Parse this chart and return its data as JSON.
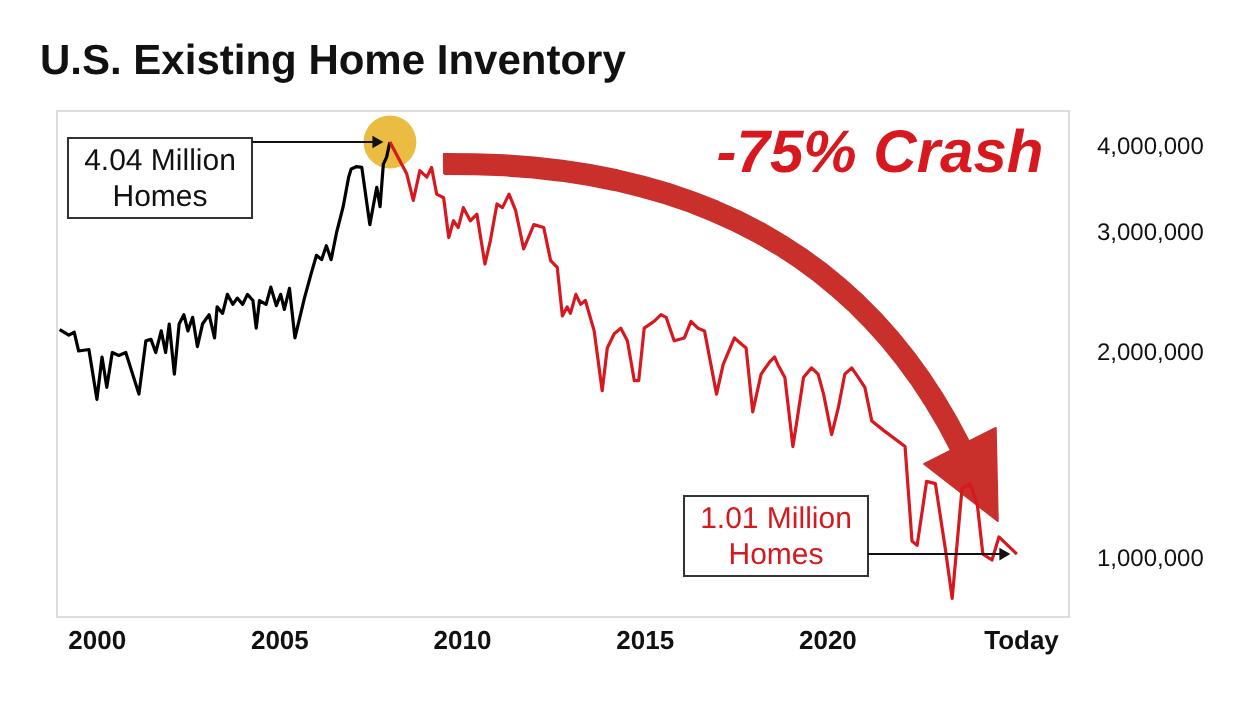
{
  "chart_data": {
    "type": "line",
    "title": "U.S. Existing Home Inventory",
    "x": [
      1999.0,
      1999.25,
      1999.4,
      1999.52,
      1999.8,
      2000.02,
      2000.16,
      2000.29,
      2000.44,
      2000.62,
      2000.81,
      2001.17,
      2001.36,
      2001.5,
      2001.63,
      2001.78,
      2001.9,
      2002.0,
      2002.14,
      2002.27,
      2002.4,
      2002.51,
      2002.64,
      2002.77,
      2002.91,
      2003.09,
      2003.24,
      2003.31,
      2003.46,
      2003.59,
      2003.74,
      2003.86,
      2004.01,
      2004.14,
      2004.29,
      2004.38,
      2004.47,
      2004.65,
      2004.78,
      2004.93,
      2005.05,
      2005.15,
      2005.29,
      2005.44,
      2005.7,
      2005.88,
      2006.03,
      2006.17,
      2006.3,
      2006.43,
      2006.58,
      2006.76,
      2006.91,
      2006.98,
      2007.13,
      2007.27,
      2007.4,
      2007.49,
      2007.58,
      2007.68,
      2007.77,
      2007.86,
      2007.95,
      2008.04
    ],
    "series": [
      {
        "color": "#000000",
        "values": [
          2150000,
          2110000,
          2130000,
          2000000,
          2010000,
          1700000,
          1960000,
          1770000,
          1990000,
          1970000,
          1990000,
          1730000,
          2070000,
          2080000,
          1990000,
          2140000,
          1990000,
          2190000,
          1850000,
          2190000,
          2260000,
          2140000,
          2240000,
          2030000,
          2190000,
          2260000,
          2090000,
          2320000,
          2270000,
          2420000,
          2340000,
          2390000,
          2340000,
          2420000,
          2370000,
          2160000,
          2370000,
          2340000,
          2480000,
          2330000,
          2420000,
          2300000,
          2470000,
          2090000,
          2390000,
          2590000,
          2760000,
          2720000,
          2850000,
          2720000,
          2980000,
          3250000,
          3590000,
          3690000,
          3720000,
          3710000,
          3310000,
          3060000,
          3250000,
          3470000,
          3250000,
          3750000,
          3840000,
          4040000
        ]
      },
      {
        "color": "#d7191f",
        "x": [
          2008.04,
          2008.5,
          2008.68,
          2008.86,
          2009.05,
          2009.18,
          2009.32,
          2009.51,
          2009.65,
          2009.78,
          2009.91,
          2010.05,
          2010.24,
          2010.42,
          2010.64,
          2010.79,
          2010.97,
          2011.12,
          2011.3,
          2011.48,
          2011.7,
          2011.98,
          2012.25,
          2012.44,
          2012.62,
          2012.76,
          2012.89,
          2012.98,
          2013.13,
          2013.26,
          2013.39,
          2013.63,
          2013.85,
          2013.99,
          2014.18,
          2014.36,
          2014.54,
          2014.73,
          2014.85,
          2015.0,
          2015.27,
          2015.46,
          2015.6,
          2015.82,
          2016.1,
          2016.28,
          2016.47,
          2016.65,
          2016.98,
          2017.16,
          2017.35,
          2017.47,
          2017.65,
          2017.79,
          2017.97,
          2018.2,
          2018.44,
          2018.57,
          2018.66,
          2018.85,
          2019.07,
          2019.21,
          2019.36,
          2019.58,
          2019.76,
          2019.91,
          2020.13,
          2020.31,
          2020.49,
          2020.68,
          2020.86,
          2021.04,
          2021.23,
          2021.56,
          2022.14,
          2022.33,
          2022.47,
          2022.73,
          2022.97,
          2023.24,
          2023.43,
          2023.7,
          2023.92,
          2024.12,
          2024.27,
          2024.52,
          2024.71,
          2025.2
        ],
        "values": [
          4040000,
          3630000,
          3320000,
          3670000,
          3590000,
          3710000,
          3390000,
          3350000,
          2930000,
          3100000,
          3030000,
          3240000,
          3100000,
          3170000,
          2680000,
          2900000,
          3280000,
          3240000,
          3390000,
          3210000,
          2820000,
          3060000,
          3030000,
          2710000,
          2650000,
          2250000,
          2320000,
          2270000,
          2420000,
          2340000,
          2370000,
          2140000,
          1750000,
          2020000,
          2120000,
          2160000,
          2070000,
          1810000,
          1810000,
          2160000,
          2210000,
          2260000,
          2240000,
          2070000,
          2090000,
          2210000,
          2160000,
          2140000,
          1730000,
          1910000,
          2020000,
          2090000,
          2050000,
          2020000,
          1630000,
          1850000,
          1930000,
          1960000,
          1910000,
          1830000,
          1450000,
          1620000,
          1830000,
          1890000,
          1850000,
          1730000,
          1510000,
          1650000,
          1850000,
          1890000,
          1830000,
          1770000,
          1580000,
          1530000,
          1450000,
          1055000,
          1040000,
          1290000,
          1280000,
          1030000,
          870000,
          1260000,
          1280000,
          1190000,
          1010000,
          990000,
          1070000,
          1010000
        ]
      }
    ],
    "annotations": [
      {
        "text": "4.04 Million Homes",
        "x": 2008.04,
        "y": 4040000
      },
      {
        "text": "1.01 Million Homes",
        "x": 2025.2,
        "y": 1010000
      },
      "-75% Crash"
    ],
    "log": true,
    "xlim": [
      1998.9,
      2026.6
    ],
    "xticks": [
      2000,
      2005,
      2010,
      2015,
      2020,
      {
        "value": 2025.3,
        "label": "Today"
      }
    ],
    "ylim": [
      820000,
      4500000
    ],
    "yticks": [
      {
        "value": 1000000,
        "label": "1,000,000"
      },
      {
        "value": 2000000,
        "label": "2,000,000"
      },
      {
        "value": 3000000,
        "label": "3,000,000"
      },
      {
        "value": 4000000,
        "label": "4,000,000"
      }
    ],
    "grid": false,
    "marker": "none",
    "line_style": "solid"
  }
}
